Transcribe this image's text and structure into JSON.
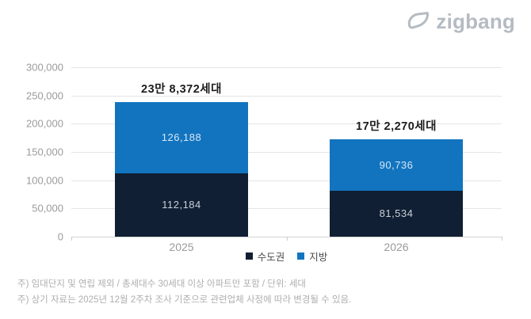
{
  "brand": {
    "logo_text": "zigbang",
    "logo_color": "#b5bbc2"
  },
  "chart_data": {
    "type": "bar",
    "stacked": true,
    "title": "",
    "categories": [
      "2025",
      "2026"
    ],
    "series": [
      {
        "name": "수도권",
        "color": "#101f33",
        "label_color": "#c9cfd8",
        "values": [
          112184,
          81534
        ],
        "labels": [
          "112,184",
          "81,534"
        ]
      },
      {
        "name": "지방",
        "color": "#1274bf",
        "label_color": "#d6e7f5",
        "values": [
          126188,
          90736
        ],
        "labels": [
          "126,188",
          "90,736"
        ]
      }
    ],
    "totals": [
      238372,
      172270
    ],
    "total_labels": [
      "23만 8,372세대",
      "17만 2,270세대"
    ],
    "y_ticks": [
      0,
      50000,
      100000,
      150000,
      200000,
      250000,
      300000
    ],
    "y_tick_labels": [
      "0",
      "50,000",
      "100,000",
      "150,000",
      "200,000",
      "250,000",
      "300,000"
    ],
    "ylim": [
      0,
      300000
    ],
    "grid": true,
    "legend_position": "bottom-center",
    "unit": "세대"
  },
  "footnotes": [
    "주) 임대단지 및 연립 제외 / 총세대수 30세대 이상 아파트만 포함 / 단위: 세대",
    "주) 상기 자료는 2025년 12월 2주차 조사 기준으로 관련업체 사정에 따라 변경될 수 있음."
  ]
}
